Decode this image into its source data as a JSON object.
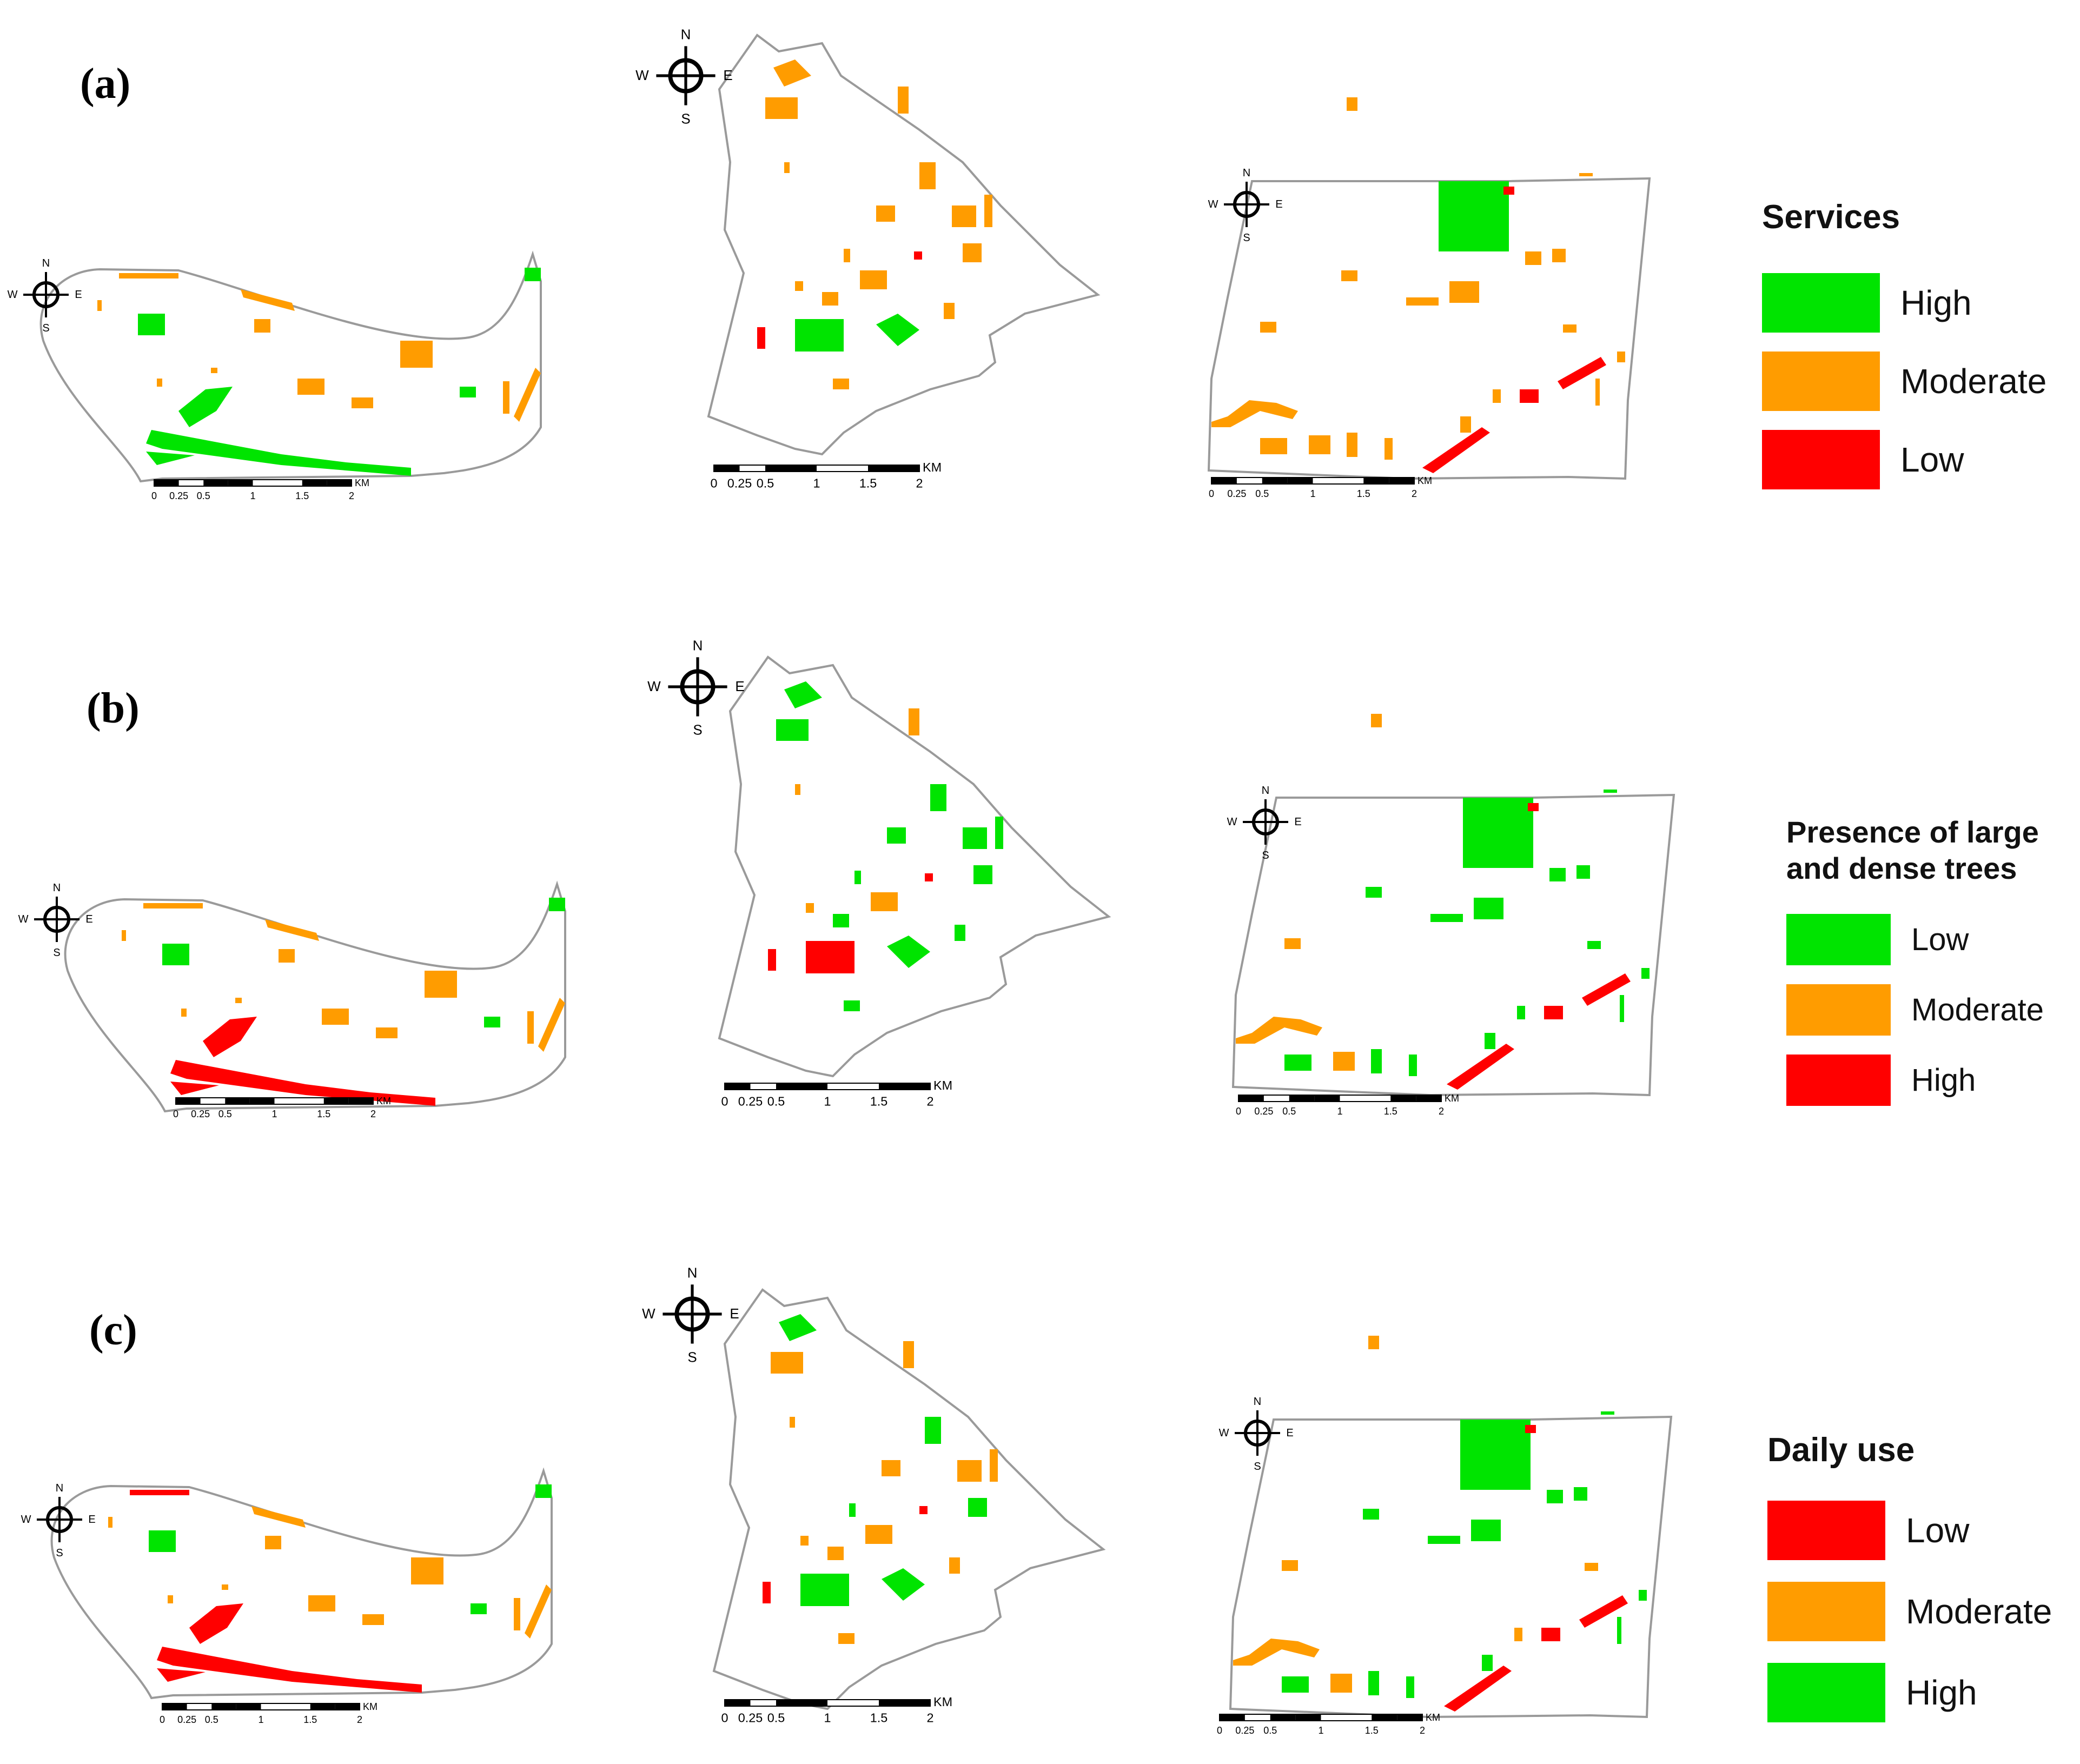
{
  "colors": {
    "high_green": "#00e400",
    "moderate_orange": "#ff9c00",
    "low_red": "#ff0000",
    "outline": "#9a9a9a"
  },
  "panels": [
    {
      "label": "(a)"
    },
    {
      "label": "(b)"
    },
    {
      "label": "(c)"
    }
  ],
  "legends": [
    {
      "title": "Services",
      "items": [
        {
          "label": "High",
          "color": "#00e400"
        },
        {
          "label": "Moderate",
          "color": "#ff9c00"
        },
        {
          "label": "Low",
          "color": "#ff0000"
        }
      ]
    },
    {
      "title": "Presence of large\nand dense trees",
      "items": [
        {
          "label": "Low",
          "color": "#00e400"
        },
        {
          "label": "Moderate",
          "color": "#ff9c00"
        },
        {
          "label": "High",
          "color": "#ff0000"
        }
      ]
    },
    {
      "title": "Daily use",
      "items": [
        {
          "label": "Low",
          "color": "#ff0000"
        },
        {
          "label": "Moderate",
          "color": "#ff9c00"
        },
        {
          "label": "High",
          "color": "#00e400"
        }
      ]
    }
  ],
  "scale_bar": {
    "unit": "KM",
    "ticks": [
      "0",
      "0.25",
      "0.5",
      "1",
      "1.5",
      "2"
    ],
    "mid_ticks": [
      "0.250.5"
    ]
  },
  "north_arrow": {
    "n": "N",
    "s": "S",
    "e": "E",
    "w": "W"
  }
}
